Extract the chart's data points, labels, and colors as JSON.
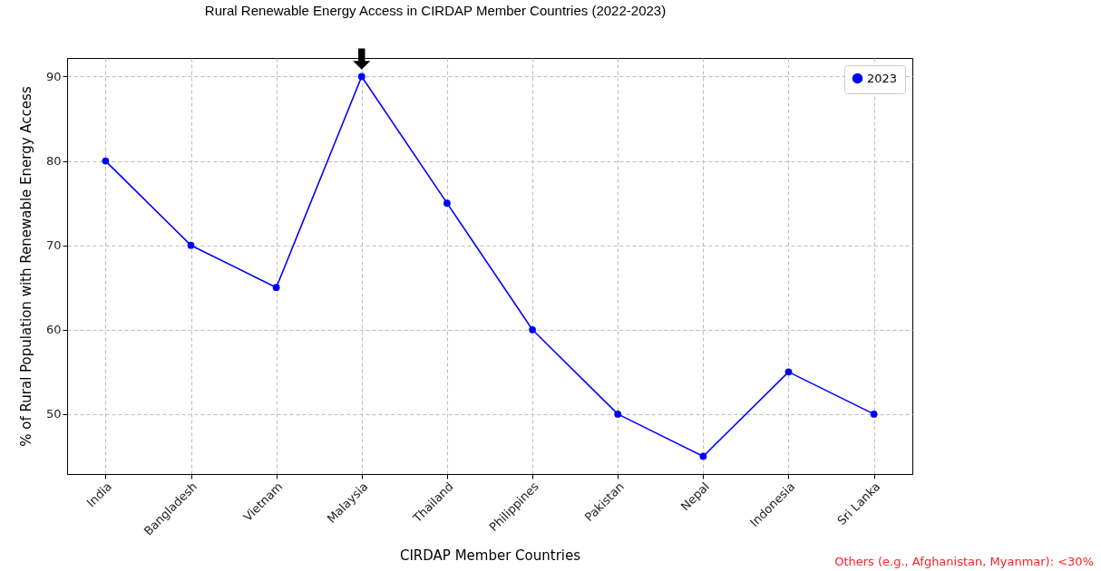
{
  "chart_data": {
    "type": "line",
    "title": "Rural Renewable Energy Access in CIRDAP Member Countries (2022-2023)",
    "xlabel": "CIRDAP Member Countries",
    "ylabel": "% of Rural Population with Renewable Energy Access",
    "categories": [
      "India",
      "Bangladesh",
      "Vietnam",
      "Malaysia",
      "Thailand",
      "Philippines",
      "Pakistan",
      "Nepal",
      "Indonesia",
      "Sri Lanka"
    ],
    "series": [
      {
        "name": "2023",
        "color": "#0000ff",
        "values": [
          80,
          70,
          65,
          90,
          75,
          60,
          50,
          45,
          55,
          50
        ]
      }
    ],
    "ylim": [
      42.9,
      92.2
    ],
    "yticks": [
      50,
      60,
      70,
      80,
      90
    ],
    "grid": true,
    "legend": "top right",
    "marker": "circle",
    "line_style": "solid",
    "annotations": [
      "Others (e.g., Afghanistan, Myanmar): <30%"
    ]
  }
}
